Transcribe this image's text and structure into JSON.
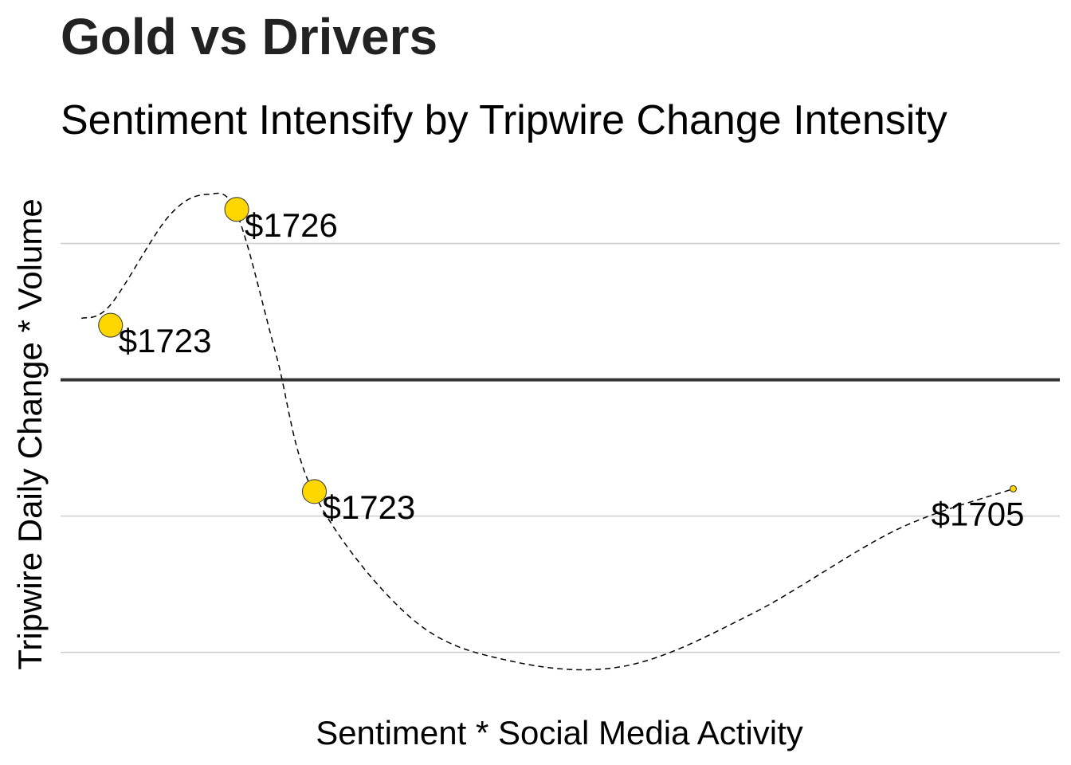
{
  "chart_data": {
    "type": "scatter",
    "title": "Gold vs Drivers",
    "subtitle": "Sentiment Intensify by Tripwire Change Intensity",
    "xlabel": "Sentiment * Social Media Activity",
    "ylabel": "Tripwire Daily Change * Volume",
    "x_ticks_shown": false,
    "y_ticks_shown": false,
    "grid": "horizontal-major",
    "reference_line_y": 0,
    "xlim": [
      0,
      100
    ],
    "ylim": [
      -2.3,
      1.5
    ],
    "y_gridlines": [
      1,
      -1,
      -2
    ],
    "point_color": "#FFD700",
    "point_outline_color": "#333333",
    "line_style": "dashed smooth curve",
    "points": [
      {
        "x": 4,
        "y": 0.4,
        "label": "$1723",
        "size": 15
      },
      {
        "x": 17,
        "y": 1.25,
        "label": "$1726",
        "size": 15
      },
      {
        "x": 25,
        "y": -0.82,
        "label": "$1723",
        "size": 15
      },
      {
        "x": 97,
        "y": -0.8,
        "label": "$1705",
        "size": 4
      }
    ],
    "smooth_curve": [
      {
        "x": 1,
        "y": 0.45
      },
      {
        "x": 4,
        "y": 0.55
      },
      {
        "x": 10,
        "y": 1.2
      },
      {
        "x": 14,
        "y": 1.36
      },
      {
        "x": 17,
        "y": 1.22
      },
      {
        "x": 21,
        "y": 0.2
      },
      {
        "x": 25,
        "y": -0.84
      },
      {
        "x": 35,
        "y": -1.75
      },
      {
        "x": 45,
        "y": -2.06
      },
      {
        "x": 57,
        "y": -2.1
      },
      {
        "x": 70,
        "y": -1.72
      },
      {
        "x": 85,
        "y": -1.1
      },
      {
        "x": 97,
        "y": -0.8
      }
    ]
  }
}
